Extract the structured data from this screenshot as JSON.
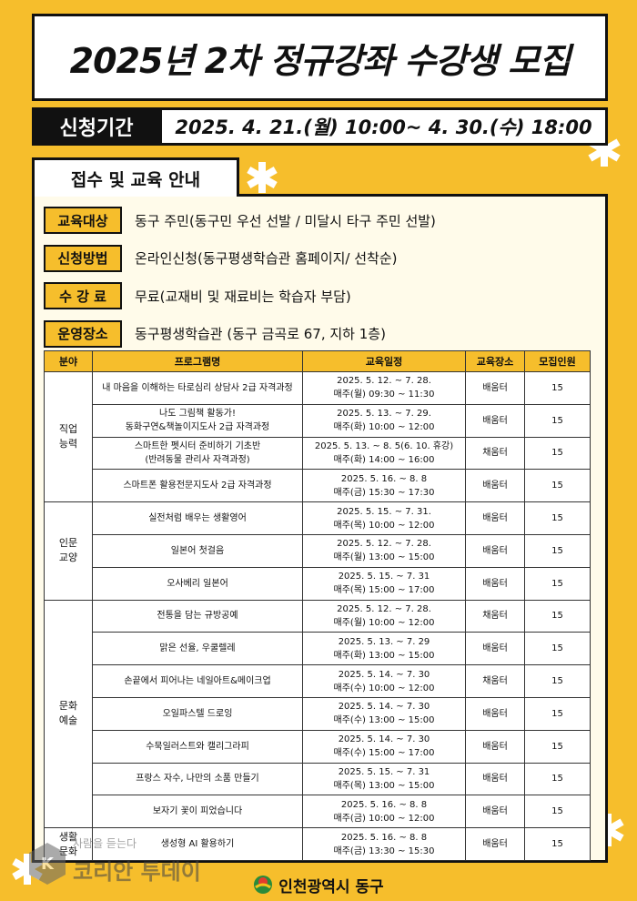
{
  "header": {
    "title": "2025년 2차 정규강좌 수강생 모집",
    "period_label": "신청기간",
    "period": "2025. 4. 21.(월) 10:00~ 4. 30.(수) 18:00"
  },
  "section_title": "접수 및 교육 안내",
  "info": [
    {
      "label": "교육대상",
      "text": "동구 주민(동구민 우선 선발 / 미달시 타구 주민 선발)"
    },
    {
      "label": "신청방법",
      "text": "온라인신청(동구평생학습관 홈페이지/ 선착순)"
    },
    {
      "label": "수 강 료",
      "text": "무료(교재비 및 재료비는 학습자 부담)"
    },
    {
      "label": "운영장소",
      "text": "동구평생학습관 (동구 금곡로 67, 지하 1층)"
    }
  ],
  "table": {
    "header": [
      "분야",
      "프로그램명",
      "교육일정",
      "교육장소",
      "모집인원"
    ],
    "groups": [
      {
        "category": [
          "직업",
          "능력"
        ],
        "rows": [
          {
            "program": [
              "내 마음을 이해하는 타로심리 상담사 2급 자격과정"
            ],
            "schedule": [
              "2025. 5. 12. ~ 7. 28.",
              "매주(월) 09:30 ~ 11:30"
            ],
            "place": "배움터",
            "count": "15"
          },
          {
            "program": [
              "나도 그림책 활동가!",
              "동화구연&책놀이지도사 2급 자격과정"
            ],
            "schedule": [
              "2025. 5. 13. ~ 7. 29.",
              "매주(화) 10:00 ~ 12:00"
            ],
            "place": "배움터",
            "count": "15"
          },
          {
            "program": [
              "스마트한 펫시터 준비하기 기초반",
              "(반려동물 관리사 자격과정)"
            ],
            "schedule": [
              "2025. 5. 13. ~ 8. 5(6. 10. 휴강)",
              "매주(화) 14:00 ~ 16:00"
            ],
            "place": "채움터",
            "count": "15"
          },
          {
            "program": [
              "스마트폰 활용전문지도사 2급 자격과정"
            ],
            "schedule": [
              "2025. 5. 16. ~ 8. 8",
              "매주(금) 15:30 ~ 17:30"
            ],
            "place": "배움터",
            "count": "15"
          }
        ]
      },
      {
        "category": [
          "인문",
          "교양"
        ],
        "rows": [
          {
            "program": [
              "실전처럼 배우는 생활영어"
            ],
            "schedule": [
              "2025. 5. 15. ~ 7. 31.",
              "매주(목) 10:00 ~ 12:00"
            ],
            "place": "배움터",
            "count": "15"
          },
          {
            "program": [
              "일본어 첫걸음"
            ],
            "schedule": [
              "2025. 5. 12. ~ 7. 28.",
              "매주(월) 13:00 ~ 15:00"
            ],
            "place": "배움터",
            "count": "15"
          },
          {
            "program": [
              "오사베리 일본어"
            ],
            "schedule": [
              "2025. 5. 15. ~ 7. 31",
              "매주(목) 15:00 ~ 17:00"
            ],
            "place": "배움터",
            "count": "15"
          }
        ]
      },
      {
        "category": [
          "문화",
          "예술"
        ],
        "rows": [
          {
            "program": [
              "전통을 담는 규방공예"
            ],
            "schedule": [
              "2025. 5. 12. ~ 7. 28.",
              "매주(월) 10:00 ~ 12:00"
            ],
            "place": "채움터",
            "count": "15"
          },
          {
            "program": [
              "맑은 선율, 우쿨렐레"
            ],
            "schedule": [
              "2025. 5. 13. ~ 7. 29",
              "매주(화) 13:00 ~ 15:00"
            ],
            "place": "배움터",
            "count": "15"
          },
          {
            "program": [
              "손끝에서 피어나는 네일아트&메이크업"
            ],
            "schedule": [
              "2025. 5. 14. ~ 7. 30",
              "매주(수) 10:00 ~ 12:00"
            ],
            "place": "채움터",
            "count": "15"
          },
          {
            "program": [
              "오일파스텔 드로잉"
            ],
            "schedule": [
              "2025. 5. 14. ~ 7. 30",
              "매주(수) 13:00 ~ 15:00"
            ],
            "place": "배움터",
            "count": "15"
          },
          {
            "program": [
              "수묵일러스트와 캘리그라피"
            ],
            "schedule": [
              "2025. 5. 14. ~ 7. 30",
              "매주(수) 15:00 ~ 17:00"
            ],
            "place": "배움터",
            "count": "15"
          },
          {
            "program": [
              "프랑스 자수, 나만의 소품 만들기"
            ],
            "schedule": [
              "2025. 5. 15. ~ 7. 31",
              "매주(목) 13:00 ~ 15:00"
            ],
            "place": "배움터",
            "count": "15"
          },
          {
            "program": [
              "보자기 꽃이 피었습니다"
            ],
            "schedule": [
              "2025. 5. 16. ~ 8. 8",
              "매주(금) 10:00 ~ 12:00"
            ],
            "place": "배움터",
            "count": "15"
          }
        ]
      },
      {
        "category": [
          "생활",
          "문화"
        ],
        "rows": [
          {
            "program": [
              "생성형 AI 활용하기"
            ],
            "schedule": [
              "2025. 5. 16. ~ 8. 8",
              "매주(금) 13:30 ~ 15:30"
            ],
            "place": "배움터",
            "count": "15"
          }
        ]
      }
    ]
  },
  "footer": {
    "org": "인천광역시 동구"
  },
  "watermark": {
    "tagline": "사람을 듣는다",
    "name": "코리안 투데이"
  }
}
